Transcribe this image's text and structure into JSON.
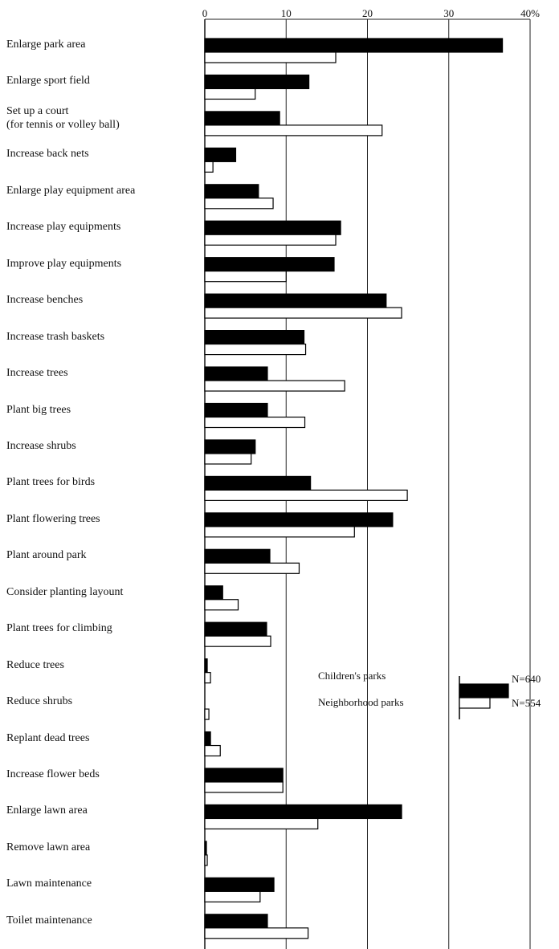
{
  "chart_data": {
    "type": "bar",
    "orientation": "horizontal",
    "categories": [
      "Enlarge park area",
      "Enlarge sport field",
      "Set up a court\n(for tennis or volley ball)",
      "Increase back nets",
      "Enlarge play equipment area",
      "Increase play equipments",
      "Improve play equipments",
      "Increase benches",
      "Increase trash baskets",
      "Increase trees",
      "Plant big trees",
      "Increase shrubs",
      "Plant trees for birds",
      "Plant flowering trees",
      "Plant around park",
      "Consider planting layount",
      "Plant trees for climbing",
      "Reduce trees",
      "Reduce shrubs",
      "Replant dead trees",
      "Increase flower beds",
      "Enlarge lawn area",
      "Remove lawn area",
      "Lawn maintenance",
      "Toilet maintenance"
    ],
    "series": [
      {
        "name": "Children's parks",
        "count_label": "N=640",
        "color": "#000000",
        "values": [
          36.6,
          12.8,
          9.2,
          3.8,
          6.6,
          16.7,
          15.9,
          22.3,
          12.2,
          7.7,
          7.7,
          6.2,
          13.0,
          23.1,
          8.0,
          2.2,
          7.6,
          0.3,
          0,
          0.7,
          9.6,
          24.2,
          0.2,
          8.5,
          7.7
        ]
      },
      {
        "name": "Neighborhood parks",
        "count_label": "N=554",
        "color": "#ffffff",
        "values": [
          16.1,
          6.2,
          21.8,
          1.0,
          8.4,
          16.1,
          10.0,
          24.2,
          12.4,
          17.2,
          12.3,
          5.7,
          24.9,
          18.4,
          11.6,
          4.1,
          8.1,
          0.7,
          0.5,
          1.9,
          9.6,
          13.9,
          0.3,
          6.8,
          12.7
        ]
      }
    ],
    "xlim": [
      0,
      40
    ],
    "xticks": [
      0,
      10,
      20,
      30,
      {
        "value": 40,
        "label": "40%"
      }
    ],
    "grid": true
  }
}
